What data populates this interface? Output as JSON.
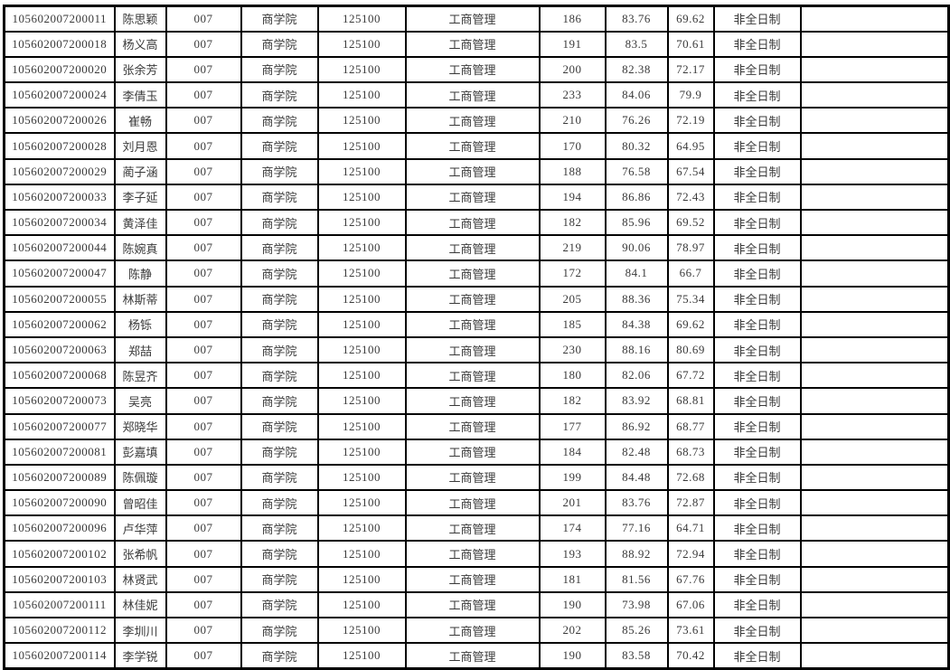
{
  "page": {
    "background_color": "#ffffff"
  },
  "table": {
    "border_color": "#000000",
    "text_color": "#3a3a3a",
    "row_background": "#ffffff",
    "rows": [
      {
        "id": "105602007200011",
        "name": "陈思颖",
        "college_code": "007",
        "college": "商学院",
        "major_code": "125100",
        "major": "工商管理",
        "score1": "186",
        "score2": "83.76",
        "score3": "69.62",
        "study_mode": "非全日制",
        "remark": ""
      },
      {
        "id": "105602007200018",
        "name": "杨义高",
        "college_code": "007",
        "college": "商学院",
        "major_code": "125100",
        "major": "工商管理",
        "score1": "191",
        "score2": "83.5",
        "score3": "70.61",
        "study_mode": "非全日制",
        "remark": ""
      },
      {
        "id": "105602007200020",
        "name": "张余芳",
        "college_code": "007",
        "college": "商学院",
        "major_code": "125100",
        "major": "工商管理",
        "score1": "200",
        "score2": "82.38",
        "score3": "72.17",
        "study_mode": "非全日制",
        "remark": ""
      },
      {
        "id": "105602007200024",
        "name": "李倩玉",
        "college_code": "007",
        "college": "商学院",
        "major_code": "125100",
        "major": "工商管理",
        "score1": "233",
        "score2": "84.06",
        "score3": "79.9",
        "study_mode": "非全日制",
        "remark": ""
      },
      {
        "id": "105602007200026",
        "name": "崔畅",
        "college_code": "007",
        "college": "商学院",
        "major_code": "125100",
        "major": "工商管理",
        "score1": "210",
        "score2": "76.26",
        "score3": "72.19",
        "study_mode": "非全日制",
        "remark": ""
      },
      {
        "id": "105602007200028",
        "name": "刘月恩",
        "college_code": "007",
        "college": "商学院",
        "major_code": "125100",
        "major": "工商管理",
        "score1": "170",
        "score2": "80.32",
        "score3": "64.95",
        "study_mode": "非全日制",
        "remark": ""
      },
      {
        "id": "105602007200029",
        "name": "蔺子涵",
        "college_code": "007",
        "college": "商学院",
        "major_code": "125100",
        "major": "工商管理",
        "score1": "188",
        "score2": "76.58",
        "score3": "67.54",
        "study_mode": "非全日制",
        "remark": ""
      },
      {
        "id": "105602007200033",
        "name": "李子延",
        "college_code": "007",
        "college": "商学院",
        "major_code": "125100",
        "major": "工商管理",
        "score1": "194",
        "score2": "86.86",
        "score3": "72.43",
        "study_mode": "非全日制",
        "remark": ""
      },
      {
        "id": "105602007200034",
        "name": "黄泽佳",
        "college_code": "007",
        "college": "商学院",
        "major_code": "125100",
        "major": "工商管理",
        "score1": "182",
        "score2": "85.96",
        "score3": "69.52",
        "study_mode": "非全日制",
        "remark": ""
      },
      {
        "id": "105602007200044",
        "name": "陈婉真",
        "college_code": "007",
        "college": "商学院",
        "major_code": "125100",
        "major": "工商管理",
        "score1": "219",
        "score2": "90.06",
        "score3": "78.97",
        "study_mode": "非全日制",
        "remark": ""
      },
      {
        "id": "105602007200047",
        "name": "陈静",
        "college_code": "007",
        "college": "商学院",
        "major_code": "125100",
        "major": "工商管理",
        "score1": "172",
        "score2": "84.1",
        "score3": "66.7",
        "study_mode": "非全日制",
        "remark": ""
      },
      {
        "id": "105602007200055",
        "name": "林斯蒂",
        "college_code": "007",
        "college": "商学院",
        "major_code": "125100",
        "major": "工商管理",
        "score1": "205",
        "score2": "88.36",
        "score3": "75.34",
        "study_mode": "非全日制",
        "remark": ""
      },
      {
        "id": "105602007200062",
        "name": "杨铄",
        "college_code": "007",
        "college": "商学院",
        "major_code": "125100",
        "major": "工商管理",
        "score1": "185",
        "score2": "84.38",
        "score3": "69.62",
        "study_mode": "非全日制",
        "remark": ""
      },
      {
        "id": "105602007200063",
        "name": "郑喆",
        "college_code": "007",
        "college": "商学院",
        "major_code": "125100",
        "major": "工商管理",
        "score1": "230",
        "score2": "88.16",
        "score3": "80.69",
        "study_mode": "非全日制",
        "remark": ""
      },
      {
        "id": "105602007200068",
        "name": "陈昱齐",
        "college_code": "007",
        "college": "商学院",
        "major_code": "125100",
        "major": "工商管理",
        "score1": "180",
        "score2": "82.06",
        "score3": "67.72",
        "study_mode": "非全日制",
        "remark": ""
      },
      {
        "id": "105602007200073",
        "name": "吴亮",
        "college_code": "007",
        "college": "商学院",
        "major_code": "125100",
        "major": "工商管理",
        "score1": "182",
        "score2": "83.92",
        "score3": "68.81",
        "study_mode": "非全日制",
        "remark": ""
      },
      {
        "id": "105602007200077",
        "name": "郑晓华",
        "college_code": "007",
        "college": "商学院",
        "major_code": "125100",
        "major": "工商管理",
        "score1": "177",
        "score2": "86.92",
        "score3": "68.77",
        "study_mode": "非全日制",
        "remark": ""
      },
      {
        "id": "105602007200081",
        "name": "彭嘉填",
        "college_code": "007",
        "college": "商学院",
        "major_code": "125100",
        "major": "工商管理",
        "score1": "184",
        "score2": "82.48",
        "score3": "68.73",
        "study_mode": "非全日制",
        "remark": ""
      },
      {
        "id": "105602007200089",
        "name": "陈佩璇",
        "college_code": "007",
        "college": "商学院",
        "major_code": "125100",
        "major": "工商管理",
        "score1": "199",
        "score2": "84.48",
        "score3": "72.68",
        "study_mode": "非全日制",
        "remark": ""
      },
      {
        "id": "105602007200090",
        "name": "曾昭佳",
        "college_code": "007",
        "college": "商学院",
        "major_code": "125100",
        "major": "工商管理",
        "score1": "201",
        "score2": "83.76",
        "score3": "72.87",
        "study_mode": "非全日制",
        "remark": ""
      },
      {
        "id": "105602007200096",
        "name": "卢华萍",
        "college_code": "007",
        "college": "商学院",
        "major_code": "125100",
        "major": "工商管理",
        "score1": "174",
        "score2": "77.16",
        "score3": "64.71",
        "study_mode": "非全日制",
        "remark": ""
      },
      {
        "id": "105602007200102",
        "name": "张希帆",
        "college_code": "007",
        "college": "商学院",
        "major_code": "125100",
        "major": "工商管理",
        "score1": "193",
        "score2": "88.92",
        "score3": "72.94",
        "study_mode": "非全日制",
        "remark": ""
      },
      {
        "id": "105602007200103",
        "name": "林贤武",
        "college_code": "007",
        "college": "商学院",
        "major_code": "125100",
        "major": "工商管理",
        "score1": "181",
        "score2": "81.56",
        "score3": "67.76",
        "study_mode": "非全日制",
        "remark": ""
      },
      {
        "id": "105602007200111",
        "name": "林佳妮",
        "college_code": "007",
        "college": "商学院",
        "major_code": "125100",
        "major": "工商管理",
        "score1": "190",
        "score2": "73.98",
        "score3": "67.06",
        "study_mode": "非全日制",
        "remark": ""
      },
      {
        "id": "105602007200112",
        "name": "李圳川",
        "college_code": "007",
        "college": "商学院",
        "major_code": "125100",
        "major": "工商管理",
        "score1": "202",
        "score2": "85.26",
        "score3": "73.61",
        "study_mode": "非全日制",
        "remark": ""
      },
      {
        "id": "105602007200114",
        "name": "李学锐",
        "college_code": "007",
        "college": "商学院",
        "major_code": "125100",
        "major": "工商管理",
        "score1": "190",
        "score2": "83.58",
        "score3": "70.42",
        "study_mode": "非全日制",
        "remark": ""
      }
    ]
  }
}
